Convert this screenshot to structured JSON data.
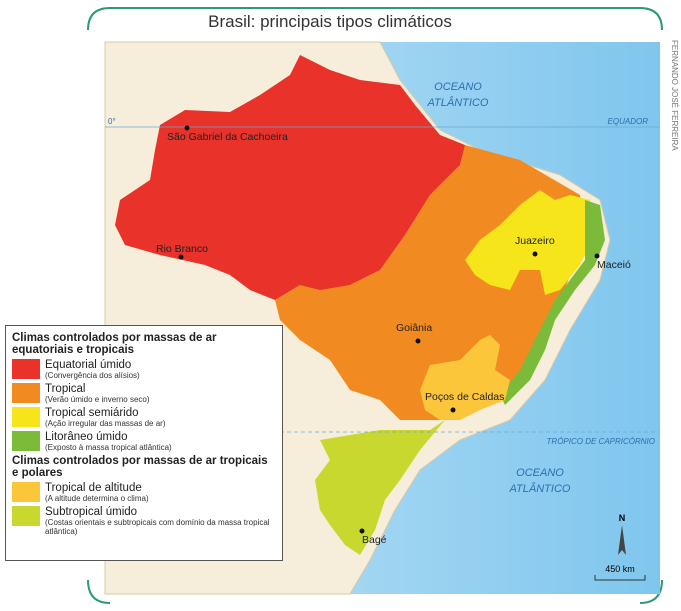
{
  "title": "Brasil: principais tipos climáticos",
  "credit": "FERNANDO JOSÉ FERREIRA",
  "oceans": [
    {
      "line1": "OCEANO",
      "line2": "ATLÂNTICO"
    },
    {
      "line1": "OCEANO",
      "line2": "ATLÂNTICO"
    }
  ],
  "lines": {
    "equator_degree": "0°",
    "equator": "EQUADOR",
    "tropic": "TRÓPICO DE CAPRICÓRNIO"
  },
  "cities": [
    "São Gabriel da Cachoeira",
    "Rio Branco",
    "Juazeiro",
    "Maceió",
    "Goiânia",
    "Poços de Caldas",
    "Bagé"
  ],
  "legend": {
    "groups": [
      {
        "heading": "Climas controlados por massas de ar equatoriais e tropicais",
        "items": [
          {
            "name": "Equatorial úmido",
            "description": "(Convergência dos alísios)"
          },
          {
            "name": "Tropical",
            "description": "(Verão úmido e inverno seco)"
          },
          {
            "name": "Tropical semiárido",
            "description": "(Ação irregular das massas de ar)"
          },
          {
            "name": "Litorâneo úmido",
            "description": "(Exposto à massa tropical atlântica)"
          }
        ]
      },
      {
        "heading": "Climas controlados por massas de ar tropicais e polares",
        "items": [
          {
            "name": "Tropical de altitude",
            "description": "(A altitude determina o clima)"
          },
          {
            "name": "Subtropical úmido",
            "description": "(Costas orientais e subtropicais com domínio da massa tropical atlântica)"
          }
        ]
      }
    ]
  },
  "scale": "450 km",
  "north": "N"
}
